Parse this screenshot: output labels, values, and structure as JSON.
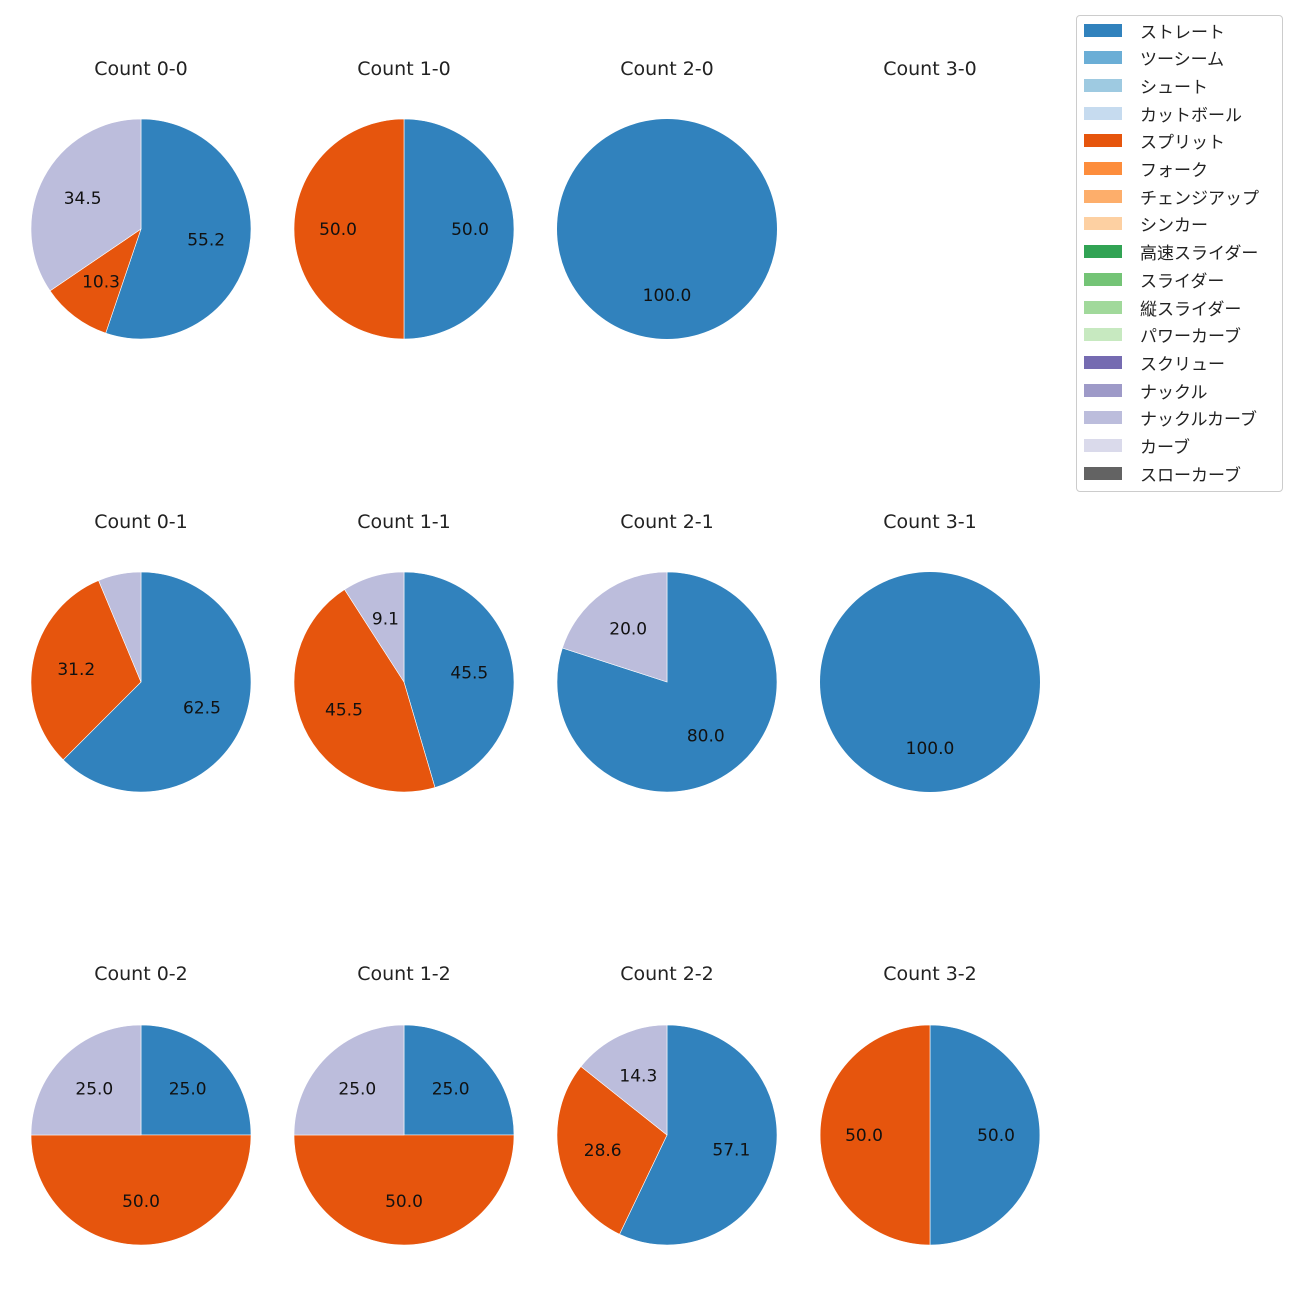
{
  "chart_data": [
    {
      "type": "pie",
      "title": "Count 0-0",
      "values": [
        55.2,
        10.3,
        34.5
      ],
      "labels": [
        "55.2",
        "10.3",
        "34.5"
      ],
      "categories": [
        "ストレート",
        "スプリット",
        "ナックルカーブ"
      ]
    },
    {
      "type": "pie",
      "title": "Count 1-0",
      "values": [
        50.0,
        50.0
      ],
      "labels": [
        "50.0",
        "50.0"
      ],
      "categories": [
        "ストレート",
        "スプリット"
      ]
    },
    {
      "type": "pie",
      "title": "Count 2-0",
      "values": [
        100.0
      ],
      "labels": [
        "100.0"
      ],
      "categories": [
        "ストレート"
      ]
    },
    {
      "type": "pie",
      "title": "Count 3-0",
      "values": [],
      "labels": [],
      "categories": []
    },
    {
      "type": "pie",
      "title": "Count 0-1",
      "values": [
        62.5,
        31.2,
        6.3
      ],
      "labels": [
        "62.5",
        "31.2",
        null
      ],
      "categories": [
        "ストレート",
        "スプリット",
        "ナックルカーブ"
      ]
    },
    {
      "type": "pie",
      "title": "Count 1-1",
      "values": [
        45.5,
        45.5,
        9.1
      ],
      "labels": [
        "45.5",
        "45.5",
        "9.1"
      ],
      "categories": [
        "ストレート",
        "スプリット",
        "ナックルカーブ"
      ]
    },
    {
      "type": "pie",
      "title": "Count 2-1",
      "values": [
        80.0,
        20.0
      ],
      "labels": [
        "80.0",
        "20.0"
      ],
      "categories": [
        "ストレート",
        "ナックルカーブ"
      ]
    },
    {
      "type": "pie",
      "title": "Count 3-1",
      "values": [
        100.0
      ],
      "labels": [
        "100.0"
      ],
      "categories": [
        "ストレート"
      ]
    },
    {
      "type": "pie",
      "title": "Count 0-2",
      "values": [
        25.0,
        50.0,
        25.0
      ],
      "labels": [
        "25.0",
        "50.0",
        "25.0"
      ],
      "categories": [
        "ストレート",
        "スプリット",
        "ナックルカーブ"
      ]
    },
    {
      "type": "pie",
      "title": "Count 1-2",
      "values": [
        25.0,
        50.0,
        25.0
      ],
      "labels": [
        "25.0",
        "50.0",
        "25.0"
      ],
      "categories": [
        "ストレート",
        "スプリット",
        "ナックルカーブ"
      ]
    },
    {
      "type": "pie",
      "title": "Count 2-2",
      "values": [
        57.1,
        28.6,
        14.3
      ],
      "labels": [
        "57.1",
        "28.6",
        "14.3"
      ],
      "categories": [
        "ストレート",
        "スプリット",
        "ナックルカーブ"
      ]
    },
    {
      "type": "pie",
      "title": "Count 3-2",
      "values": [
        50.0,
        50.0
      ],
      "labels": [
        "50.0",
        "50.0"
      ],
      "categories": [
        "ストレート",
        "スプリット"
      ]
    }
  ],
  "legend": {
    "placement": "top-right",
    "items": [
      {
        "label": "ストレート",
        "color": "#3182bd"
      },
      {
        "label": "ツーシーム",
        "color": "#6baed6"
      },
      {
        "label": "シュート",
        "color": "#9ecae1"
      },
      {
        "label": "カットボール",
        "color": "#c6dbef"
      },
      {
        "label": "スプリット",
        "color": "#e6550d"
      },
      {
        "label": "フォーク",
        "color": "#fd8d3c"
      },
      {
        "label": "チェンジアップ",
        "color": "#fdae6b"
      },
      {
        "label": "シンカー",
        "color": "#fdd0a2"
      },
      {
        "label": "高速スライダー",
        "color": "#31a354"
      },
      {
        "label": "スライダー",
        "color": "#74c476"
      },
      {
        "label": "縦スライダー",
        "color": "#a1d99b"
      },
      {
        "label": "パワーカーブ",
        "color": "#c7e9c0"
      },
      {
        "label": "スクリュー",
        "color": "#756bb1"
      },
      {
        "label": "ナックル",
        "color": "#9e9ac8"
      },
      {
        "label": "ナックルカーブ",
        "color": "#bcbddc"
      },
      {
        "label": "カーブ",
        "color": "#dadaeb"
      },
      {
        "label": "スローカーブ",
        "color": "#636363"
      }
    ]
  }
}
